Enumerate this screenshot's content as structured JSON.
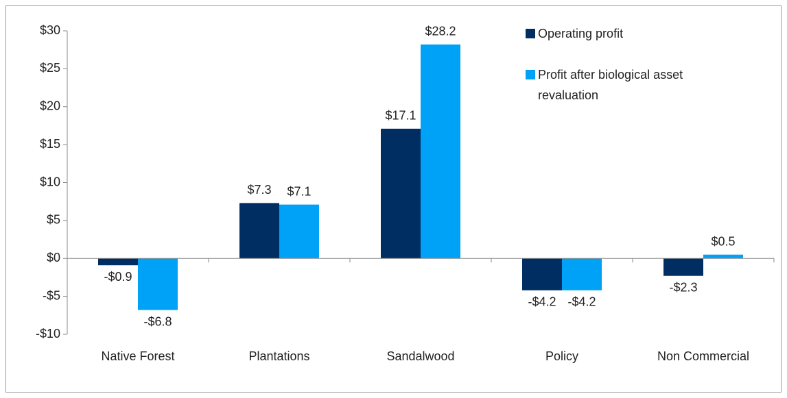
{
  "chart_data": {
    "type": "bar",
    "categories": [
      "Native Forest",
      "Plantations",
      "Sandalwood",
      "Policy",
      "Non Commercial"
    ],
    "series": [
      {
        "name": "Operating profit",
        "color": "#002d62",
        "values": [
          -0.9,
          7.3,
          17.1,
          -4.2,
          -2.3
        ],
        "value_labels": [
          "-$0.9",
          "$7.3",
          "$17.1",
          "-$4.2",
          "-$2.3"
        ]
      },
      {
        "name": "Profit after biological asset revaluation",
        "color": "#00a2f7",
        "values": [
          -6.8,
          7.1,
          28.2,
          -4.2,
          0.5
        ],
        "value_labels": [
          "-$6.8",
          "$7.1",
          "$28.2",
          "-$4.2",
          "$0.5"
        ]
      }
    ],
    "ylim": [
      -10,
      30
    ],
    "yticks": [
      {
        "value": -10,
        "label": "-$10"
      },
      {
        "value": -5,
        "label": "-$5"
      },
      {
        "value": 0,
        "label": "$0"
      },
      {
        "value": 5,
        "label": "$5"
      },
      {
        "value": 10,
        "label": "$10"
      },
      {
        "value": 15,
        "label": "$15"
      },
      {
        "value": 20,
        "label": "$20"
      },
      {
        "value": 25,
        "label": "$25"
      },
      {
        "value": 30,
        "label": "$30"
      }
    ],
    "grid": false,
    "legend": "upper-right"
  }
}
